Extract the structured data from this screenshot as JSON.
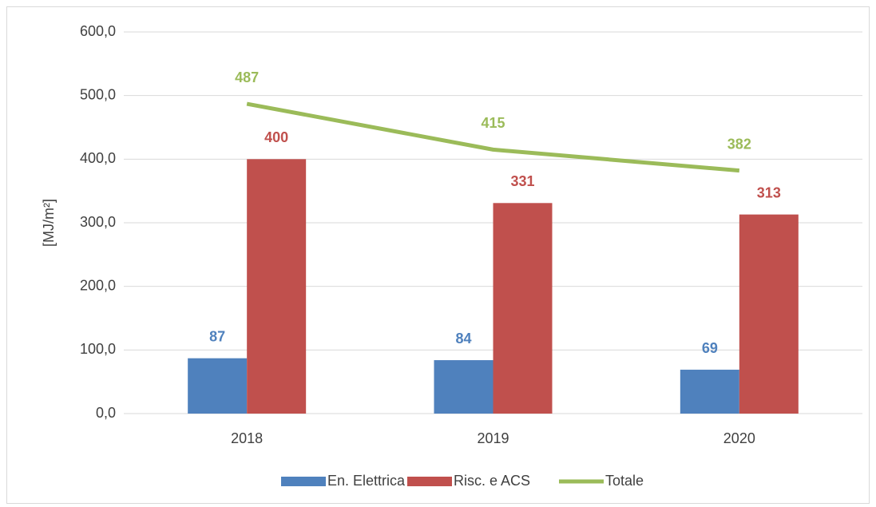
{
  "chart_data": {
    "type": "bar",
    "ylabel": "[MJ/m²]",
    "categories": [
      "2018",
      "2019",
      "2020"
    ],
    "series": [
      {
        "name": "En. Elettrica",
        "type": "bar",
        "color": "#4f81bd",
        "values": [
          87,
          84,
          69
        ]
      },
      {
        "name": "Risc. e ACS",
        "type": "bar",
        "color": "#c0504d",
        "values": [
          400,
          331,
          313
        ]
      },
      {
        "name": "Totale",
        "type": "line",
        "color": "#9bbb59",
        "values": [
          487,
          415,
          382
        ]
      }
    ],
    "ylim": [
      0,
      600
    ],
    "yticks": [
      {
        "value": 0,
        "label": "0,0"
      },
      {
        "value": 100,
        "label": "100,0"
      },
      {
        "value": 200,
        "label": "200,0"
      },
      {
        "value": 300,
        "label": "300,0"
      },
      {
        "value": 400,
        "label": "400,0"
      },
      {
        "value": 500,
        "label": "500,0"
      },
      {
        "value": 600,
        "label": "600,0"
      }
    ],
    "grid": true,
    "legend": "bottom"
  }
}
